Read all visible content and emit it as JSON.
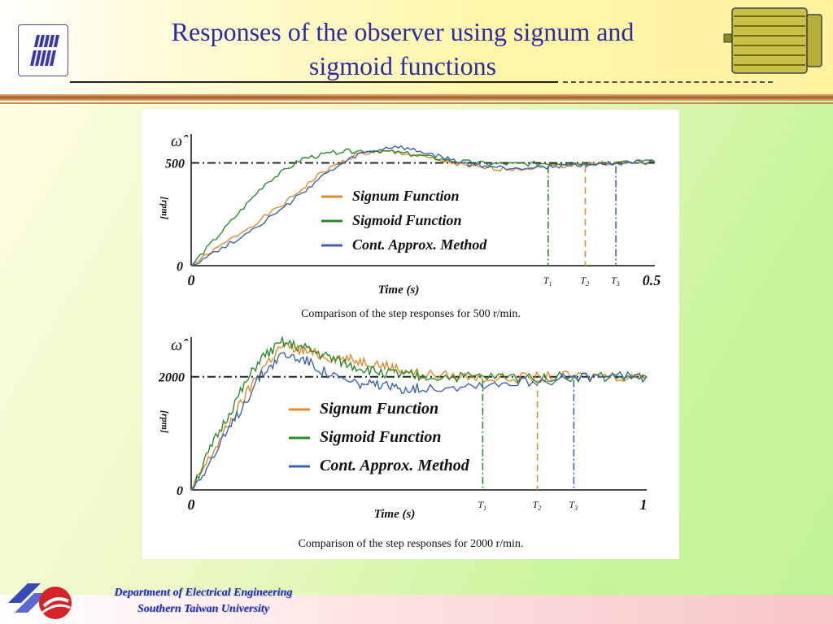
{
  "slide": {
    "title_line1": "Responses of the observer using signum and",
    "title_line2": "sigmoid functions",
    "footer_line1": "Department of Electrical Engineering",
    "footer_line2": "Southern Taiwan University",
    "colors": {
      "title": "#2b2ba6",
      "footer_text": "#1e2ab8"
    }
  },
  "chart_data": [
    {
      "type": "line",
      "caption": "Comparison of the step responses for 500 r/min.",
      "y_symbol": "ω̂",
      "ylabel": "[rpm]",
      "xlabel": "Time (s)",
      "x_ticks": [
        "0",
        "0.5"
      ],
      "y_ticks": [
        "0",
        "500"
      ],
      "xlim": [
        0,
        0.5
      ],
      "ylim": [
        0,
        640
      ],
      "reference": 500,
      "series": [
        {
          "name": "Signum  Function",
          "color": "#e08a2c",
          "x": [
            0,
            0.05,
            0.1,
            0.14,
            0.18,
            0.22,
            0.26,
            0.3,
            0.34,
            0.38,
            0.42,
            0.46,
            0.5
          ],
          "y": [
            0,
            150,
            300,
            450,
            545,
            555,
            520,
            480,
            470,
            480,
            495,
            500,
            505
          ]
        },
        {
          "name": "Sigmoid Function",
          "color": "#2e8a2e",
          "x": [
            0,
            0.04,
            0.08,
            0.12,
            0.16,
            0.2,
            0.24,
            0.28,
            0.32,
            0.36,
            0.4,
            0.44,
            0.5
          ],
          "y": [
            0,
            200,
            400,
            520,
            555,
            560,
            540,
            510,
            495,
            495,
            500,
            500,
            500
          ]
        },
        {
          "name": "Cont. Approx. Method",
          "color": "#3f63b0",
          "x": [
            0,
            0.05,
            0.1,
            0.14,
            0.18,
            0.22,
            0.26,
            0.3,
            0.34,
            0.38,
            0.42,
            0.46,
            0.5
          ],
          "y": [
            0,
            130,
            280,
            430,
            540,
            580,
            540,
            490,
            475,
            480,
            490,
            500,
            505
          ]
        }
      ],
      "markers": [
        {
          "label": "T1",
          "x": 0.385,
          "color": "#2e8a2e"
        },
        {
          "label": "T2",
          "x": 0.425,
          "color": "#e08a2c"
        },
        {
          "label": "T3",
          "x": 0.458,
          "color": "#3f63b0"
        }
      ]
    },
    {
      "type": "line",
      "caption": "Comparison of the step responses for 2000 r/min.",
      "y_symbol": "ω̂",
      "ylabel": "[rpm]",
      "xlabel": "Time (s)",
      "x_ticks": [
        "0",
        "1"
      ],
      "y_ticks": [
        "0",
        "2000"
      ],
      "xlim": [
        0,
        1
      ],
      "ylim": [
        0,
        2700
      ],
      "reference": 2000,
      "series": [
        {
          "name": "Signum  Function",
          "color": "#e08a2c",
          "x": [
            0,
            0.05,
            0.1,
            0.15,
            0.2,
            0.25,
            0.3,
            0.35,
            0.4,
            0.45,
            0.5,
            0.6,
            0.7,
            0.8,
            0.9,
            1.0
          ],
          "y": [
            0,
            700,
            1400,
            2100,
            2550,
            2450,
            2350,
            2300,
            2250,
            2150,
            2050,
            2000,
            1970,
            2000,
            2020,
            2000
          ]
        },
        {
          "name": "Sigmoid Function",
          "color": "#2e8a2e",
          "x": [
            0,
            0.05,
            0.1,
            0.15,
            0.2,
            0.25,
            0.3,
            0.35,
            0.4,
            0.45,
            0.5,
            0.6,
            0.7,
            0.8,
            0.9,
            1.0
          ],
          "y": [
            0,
            850,
            1600,
            2300,
            2600,
            2500,
            2350,
            2200,
            2100,
            2050,
            2000,
            2000,
            1990,
            2000,
            2000,
            2000
          ]
        },
        {
          "name": "Cont. Approx. Method",
          "color": "#3f63b0",
          "x": [
            0,
            0.05,
            0.1,
            0.15,
            0.2,
            0.25,
            0.3,
            0.35,
            0.4,
            0.45,
            0.5,
            0.6,
            0.7,
            0.8,
            0.9,
            1.0
          ],
          "y": [
            0,
            600,
            1300,
            2000,
            2400,
            2300,
            2050,
            1900,
            1850,
            1800,
            1800,
            1850,
            1900,
            1950,
            2000,
            2000
          ]
        }
      ],
      "markers": [
        {
          "label": "T1",
          "x": 0.64,
          "color": "#2e8a2e"
        },
        {
          "label": "T2",
          "x": 0.76,
          "color": "#e08a2c"
        },
        {
          "label": "T3",
          "x": 0.84,
          "color": "#3f63b0"
        }
      ]
    }
  ]
}
